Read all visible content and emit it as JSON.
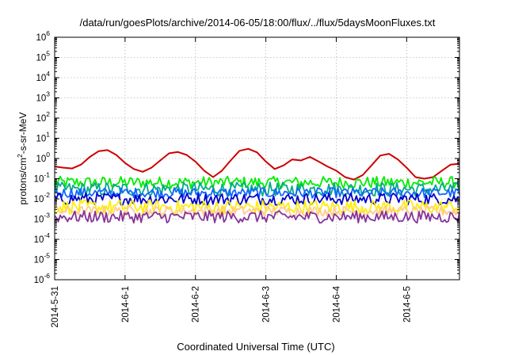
{
  "chart_data": {
    "type": "line",
    "title": "/data/run/goesPlots/archive/2014-06-05/18:00/flux/../flux/5daysMoonFluxes.txt",
    "xlabel": "Coordinated Universal Time (UTC)",
    "ylabel": {
      "pre": "protons/cm",
      "sup": "2",
      "post": "-s-sr-MeV"
    },
    "yscale": "log",
    "ylim": [
      1e-06,
      1000000.0
    ],
    "xlim": [
      "2014-05-31T00:00",
      "2014-06-05T18:00"
    ],
    "y_ticks": [
      {
        "value": 1e-06,
        "base": "10",
        "exp": "-6"
      },
      {
        "value": 1e-05,
        "base": "10",
        "exp": "-5"
      },
      {
        "value": 0.0001,
        "base": "10",
        "exp": "-4"
      },
      {
        "value": 0.001,
        "base": "10",
        "exp": "-3"
      },
      {
        "value": 0.01,
        "base": "10",
        "exp": "-2"
      },
      {
        "value": 0.1,
        "base": "10",
        "exp": "-1"
      },
      {
        "value": 1,
        "base": "10",
        "exp": "0"
      },
      {
        "value": 10,
        "base": "10",
        "exp": "1"
      },
      {
        "value": 100,
        "base": "10",
        "exp": "2"
      },
      {
        "value": 1000,
        "base": "10",
        "exp": "3"
      },
      {
        "value": 10000,
        "base": "10",
        "exp": "4"
      },
      {
        "value": 100000,
        "base": "10",
        "exp": "5"
      },
      {
        "value": 1000000,
        "base": "10",
        "exp": "6"
      }
    ],
    "x_ticks": [
      {
        "value": "2014-05-31T00:00",
        "label": "2014-5-31"
      },
      {
        "value": "2014-06-01T00:00",
        "label": "2014-6-1"
      },
      {
        "value": "2014-06-02T00:00",
        "label": "2014-6-2"
      },
      {
        "value": "2014-06-03T00:00",
        "label": "2014-6-3"
      },
      {
        "value": "2014-06-04T00:00",
        "label": "2014-6-4"
      },
      {
        "value": "2014-06-05T00:00",
        "label": "2014-6-5"
      }
    ],
    "grid": true,
    "legend": "none",
    "series": [
      {
        "color": "#cc0000",
        "x": [
          "2014-05-31T00:00",
          "2014-05-31T03:00",
          "2014-05-31T06:00",
          "2014-05-31T09:00",
          "2014-05-31T12:00",
          "2014-05-31T15:00",
          "2014-05-31T18:00",
          "2014-05-31T21:00",
          "2014-06-01T00:00",
          "2014-06-01T03:00",
          "2014-06-01T06:00",
          "2014-06-01T09:00",
          "2014-06-01T12:00",
          "2014-06-01T15:00",
          "2014-06-01T18:00",
          "2014-06-01T21:00",
          "2014-06-02T00:00",
          "2014-06-02T03:00",
          "2014-06-02T06:00",
          "2014-06-02T09:00",
          "2014-06-02T12:00",
          "2014-06-02T15:00",
          "2014-06-02T18:00",
          "2014-06-02T21:00",
          "2014-06-03T00:00",
          "2014-06-03T03:00",
          "2014-06-03T06:00",
          "2014-06-03T09:00",
          "2014-06-03T12:00",
          "2014-06-03T15:00",
          "2014-06-03T18:00",
          "2014-06-03T21:00",
          "2014-06-04T00:00",
          "2014-06-04T03:00",
          "2014-06-04T06:00",
          "2014-06-04T09:00",
          "2014-06-04T12:00",
          "2014-06-04T15:00",
          "2014-06-04T18:00",
          "2014-06-04T21:00",
          "2014-06-05T00:00",
          "2014-06-05T03:00",
          "2014-06-05T06:00",
          "2014-06-05T09:00",
          "2014-06-05T12:00",
          "2014-06-05T15:00",
          "2014-06-05T18:00"
        ],
        "y": [
          0.4,
          0.35,
          0.32,
          0.5,
          1.2,
          2.3,
          2.6,
          1.5,
          0.6,
          0.3,
          0.22,
          0.35,
          0.8,
          1.8,
          2.1,
          1.5,
          0.7,
          0.25,
          0.12,
          0.25,
          0.8,
          2.4,
          3,
          2,
          0.7,
          0.3,
          0.45,
          0.9,
          0.8,
          1.2,
          0.7,
          0.4,
          0.25,
          0.12,
          0.09,
          0.15,
          0.45,
          1.4,
          1.7,
          0.9,
          0.35,
          0.12,
          0.1,
          0.12,
          0.25,
          0.5,
          0.55
        ]
      },
      {
        "color": "#00ee00",
        "y_mid": 0.065
      },
      {
        "color": "#00aa88",
        "y_mid": 0.03
      },
      {
        "color": "#1166ff",
        "y_mid": 0.02
      },
      {
        "color": "#0000cc",
        "y_mid": 0.01
      },
      {
        "color": "#ffee00",
        "y_mid": 0.004
      },
      {
        "color": "#ffcc88",
        "y_mid": 0.0025
      },
      {
        "color": "#883399",
        "y_mid": 0.0013
      }
    ]
  }
}
